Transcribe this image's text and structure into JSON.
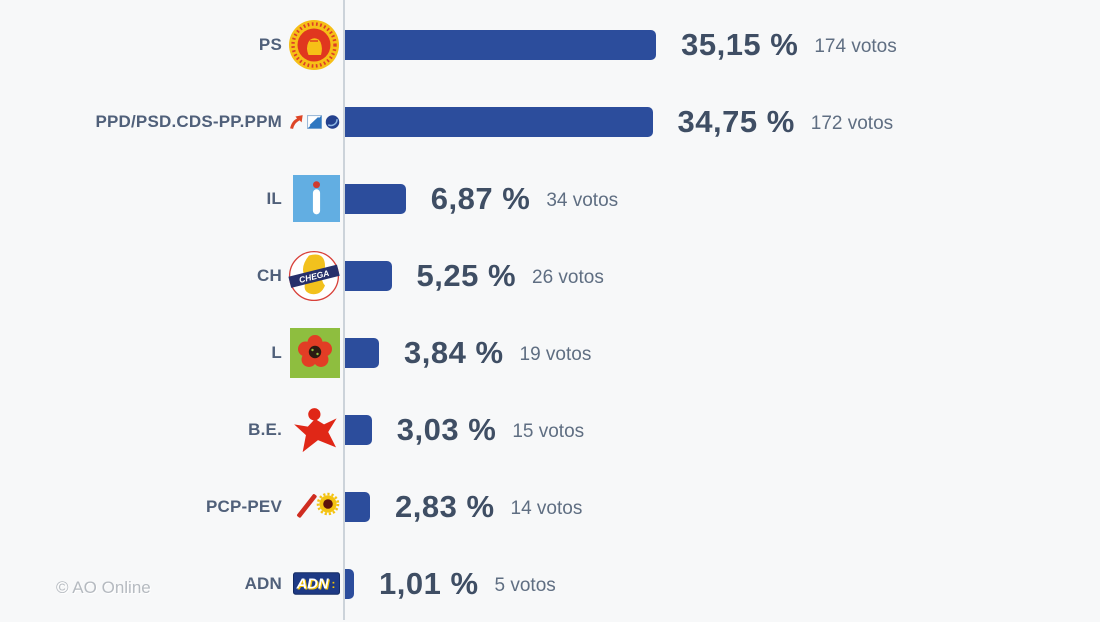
{
  "watermark": "© AO Online",
  "chart_data": {
    "type": "bar",
    "orientation": "horizontal",
    "title": "",
    "xlabel": "",
    "ylabel": "",
    "xlim": [
      0,
      39
    ],
    "grid": false,
    "bar_color": "#2c4d9c",
    "axis_line_color": "#ccd3da",
    "categories": [
      "PS",
      "PPD/PSD.CDS-PP.PPM",
      "IL",
      "CH",
      "L",
      "B.E.",
      "PCP-PEV",
      "ADN"
    ],
    "values": [
      35.15,
      34.75,
      6.87,
      5.25,
      3.84,
      3.03,
      2.83,
      1.01
    ],
    "percent_labels": [
      "35,15 %",
      "34,75 %",
      "6,87 %",
      "5,25 %",
      "3,84 %",
      "3,03 %",
      "2,83 %",
      "1,01 %"
    ],
    "votes": [
      174,
      172,
      34,
      26,
      19,
      15,
      14,
      5
    ],
    "votes_labels": [
      "174 votos",
      "172 votos",
      "34 votos",
      "26 votos",
      "19 votos",
      "15 votos",
      "14 votos",
      "5 votos"
    ],
    "icons": [
      "ps-emblem-icon",
      "psd-cds-ppm-icons",
      "il-logo-icon",
      "chega-logo-icon",
      "livre-logo-icon",
      "be-star-icon",
      "pcp-pev-logo-icon",
      "adn-logo-icon"
    ]
  }
}
